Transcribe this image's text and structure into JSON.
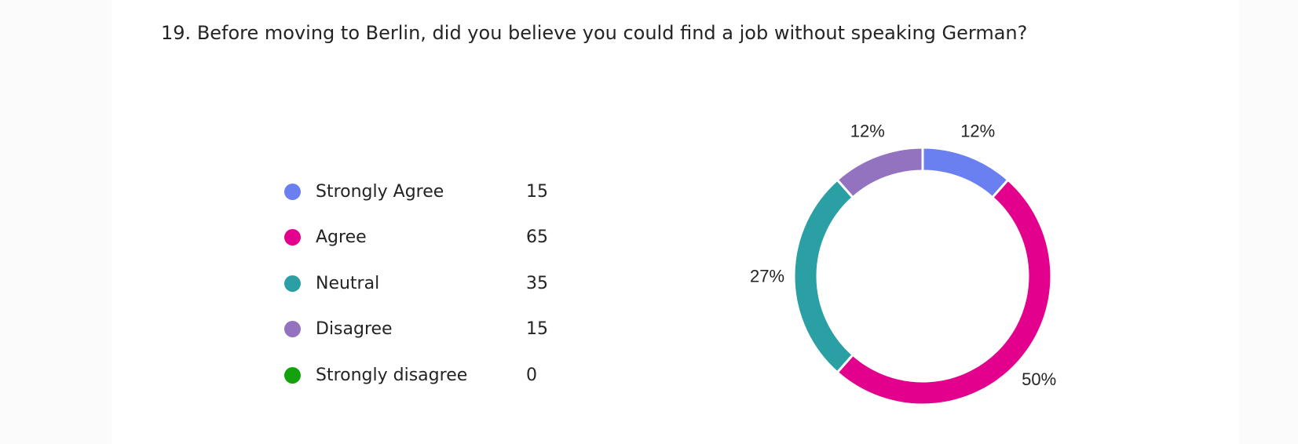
{
  "question": {
    "number": "19.",
    "text": "Before moving to Berlin, did you believe you could find a job without speaking German?"
  },
  "chart_data": {
    "type": "pie",
    "style": "donut",
    "categories": [
      "Strongly Agree",
      "Agree",
      "Neutral",
      "Disagree",
      "Strongly disagree"
    ],
    "values": [
      15,
      65,
      35,
      15,
      0
    ],
    "percent_labels": [
      "12%",
      "50%",
      "27%",
      "12%",
      ""
    ],
    "colors": [
      "#6a7ff0",
      "#e3008c",
      "#2aa0a4",
      "#9373c0",
      "#13a10e"
    ],
    "legend_position": "left"
  }
}
